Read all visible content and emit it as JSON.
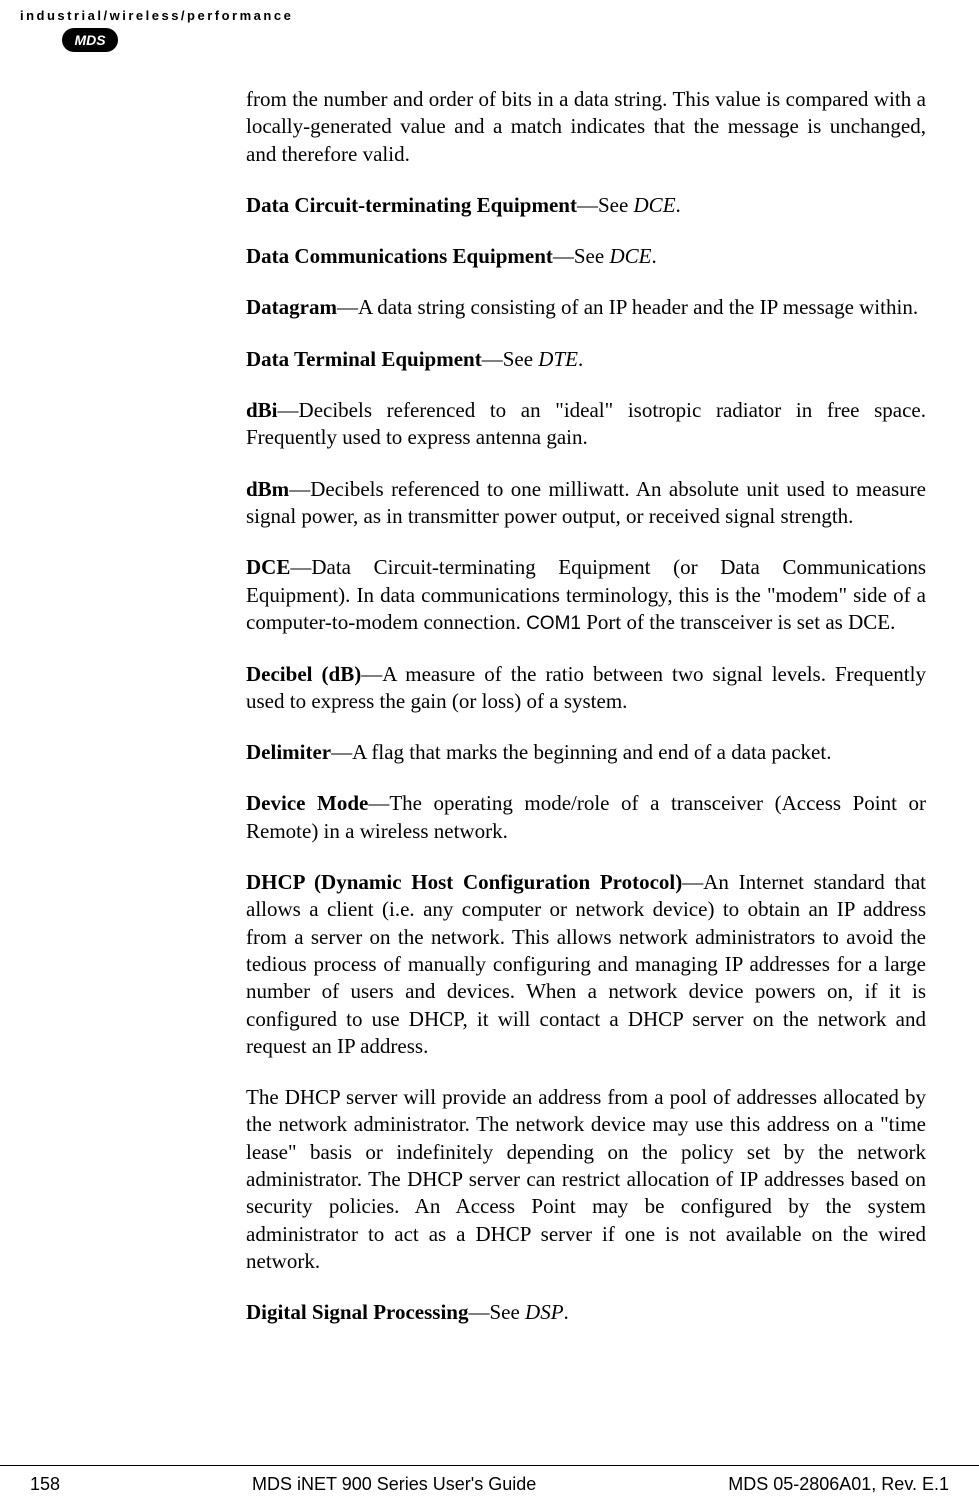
{
  "header": {
    "tagline": "industrial/wireless/performance",
    "logo_text": "MDS"
  },
  "entries": [
    {
      "intro": "from the number and order of bits in a data string. This value is compared with a locally-generated value and a match indicates that the message is unchanged, and therefore valid."
    },
    {
      "term": "Data Circuit-terminating Equipment",
      "sep": "—See ",
      "ref": "DCE",
      "tail": "."
    },
    {
      "term": "Data Communications Equipment",
      "sep": "—See ",
      "ref": "DCE",
      "tail": "."
    },
    {
      "term": "Datagram",
      "def": "—A data string consisting of an IP header and the IP message within."
    },
    {
      "term": "Data Terminal Equipment",
      "sep": "—See ",
      "ref": "DTE",
      "tail": "."
    },
    {
      "term": "dBi",
      "def": "—Decibels referenced to an \"ideal\" isotropic radiator in free space. Frequently used to express antenna gain."
    },
    {
      "term": "dBm",
      "def": "—Decibels referenced to one milliwatt. An absolute unit used to measure signal power, as in transmitter power output, or received signal strength."
    },
    {
      "term": "DCE",
      "def_pre": "—Data Circuit-terminating Equipment (or Data Communications Equipment). In data communications terminology, this is the \"modem\" side of a computer-to-modem connection. ",
      "code": "COM1",
      "def_post": " Port of the transceiver is set as DCE."
    },
    {
      "term": "Decibel (dB)",
      "def": "—A measure of the ratio between two signal levels. Frequently used to express the gain (or loss) of a system."
    },
    {
      "term": "Delimiter",
      "def": "—A flag that marks the beginning and end of a data packet."
    },
    {
      "term": "Device Mode",
      "def": "—The operating mode/role of a transceiver (Access Point or Remote) in a wireless network."
    },
    {
      "term": "DHCP (Dynamic Host Configuration Protocol)",
      "def": "—An Internet standard that allows a client (i.e. any computer or network device) to obtain an IP address from a server on the network. This allows network administrators to avoid the tedious process of manually configuring and managing IP addresses for a large number of users and devices. When a network device powers on, if it is configured to use DHCP, it will contact a DHCP server on the network and request an IP address."
    },
    {
      "cont": "The DHCP server will provide an address from a pool of addresses allocated by the network administrator. The network device may use this address on a \"time lease\" basis or indefinitely depending on the policy set by the network administrator. The DHCP server can restrict allocation of IP addresses based on security policies. An Access Point may be configured by the system administrator to act as a DHCP server if one is not available on the wired network."
    },
    {
      "term": "Digital Signal Processing",
      "sep": "—See ",
      "ref": "DSP",
      "tail": "."
    }
  ],
  "footer": {
    "page_number": "158",
    "title": "MDS iNET 900 Series User's Guide",
    "doc_id": "MDS 05-2806A01, Rev. E.1"
  }
}
